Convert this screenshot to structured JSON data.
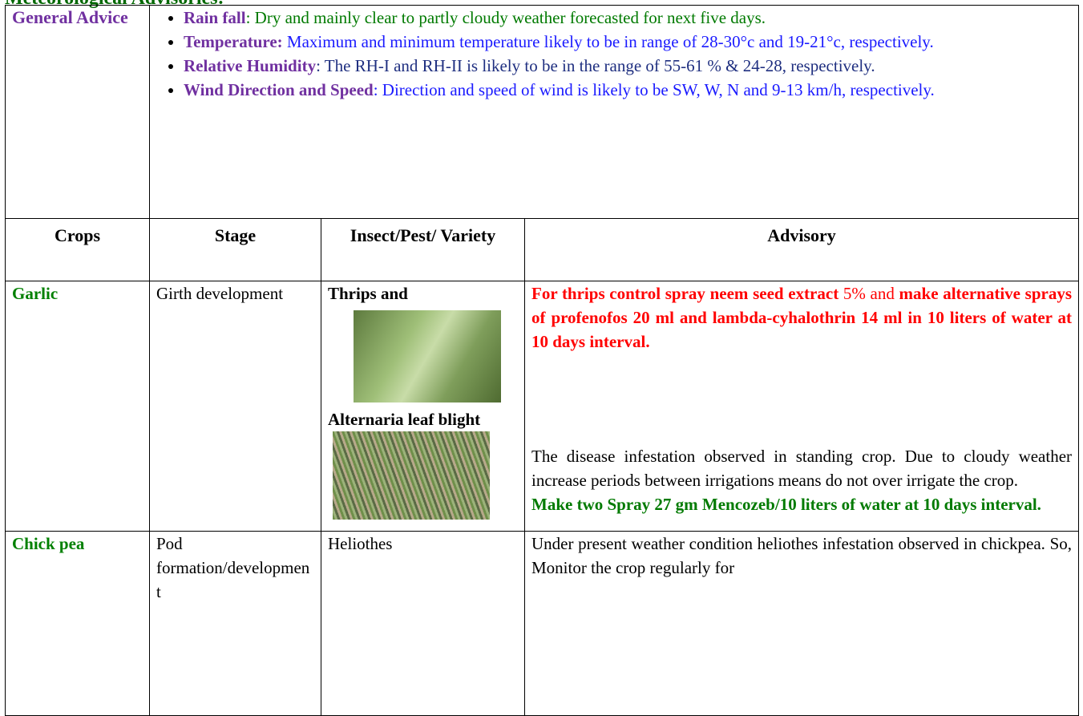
{
  "heading": "Meteorological Advisories:",
  "general_advice": {
    "label": "General Advice",
    "items": [
      {
        "label": "Rain fall",
        "text": ": Dry and mainly clear to partly cloudy weather forecasted for next five days."
      },
      {
        "label": "Temperature:",
        "text": "Maximum and minimum temperature likely to be in range of  28-30°c and 19-21°c, respectively."
      },
      {
        "label": "Relative Humidity",
        "text": ": The RH-I and RH-II is likely to be in the range of  55-61 %  & 24-28, respectively."
      },
      {
        "label": "Wind Direction and Speed",
        "text": ": Direction and speed of wind is likely to be SW, W, N and 9-13  km/h, respectively."
      }
    ]
  },
  "table": {
    "header": [
      "Crops",
      "Stage",
      "Insect/Pest/ Variety",
      "Advisory"
    ],
    "rows": [
      {
        "crop": "Garlic",
        "stage": "Girth development",
        "pests": [
          "Thrips and",
          "Alternaria leaf blight"
        ],
        "advisory": [
          [
            "For thrips control spray neem seed extract",
            " 5% and ",
            "make alternative sprays of profenofos  20 ml and lambda-cyhalothrin 14 ml in 10 liters of water at 10 days interval."
          ],
          "The disease infestation observed in standing crop. Due to cloudy weather increase periods between irrigations means do not over irrigate the crop.",
          "Make two Spray 27 gm Mencozeb/10 liters of water at 10 days interval."
        ]
      },
      {
        "crop": "Chick pea",
        "stage": "Pod formation/development",
        "pests": [
          "Heliothes"
        ],
        "advisory": [
          "Under present weather condition heliothes infestation observed in chickpea. So,  Monitor the crop regularly for"
        ]
      }
    ]
  }
}
